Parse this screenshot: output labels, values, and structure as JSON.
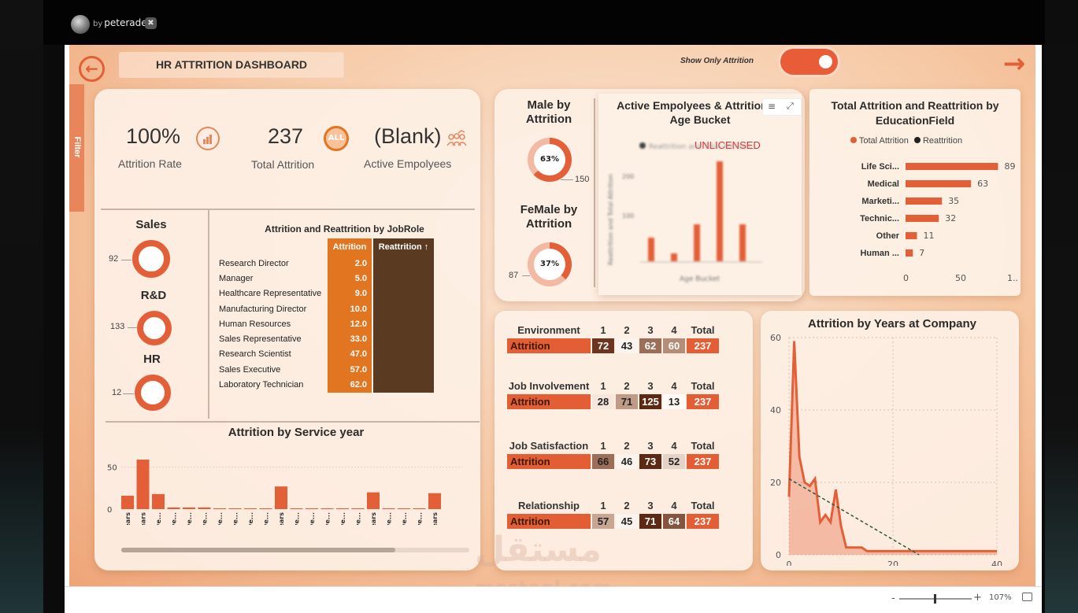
{
  "app": {
    "author_prefix": "by",
    "author": "peteradel",
    "watermark_ar": "مستقل",
    "watermark_en": "mostaql.com"
  },
  "header": {
    "title": "HR ATTRITION DASHBOARD",
    "toggle_label": "Show Only Attrition",
    "filter_tab": "Filter"
  },
  "kpis": [
    {
      "value": "100%",
      "label": "Attrition Rate"
    },
    {
      "value": "237",
      "label": "Total Attrition"
    },
    {
      "value": "(Blank)",
      "label": "Active Empolyees"
    }
  ],
  "dept": {
    "items": [
      {
        "name": "Sales",
        "value": "92"
      },
      {
        "name": "R&D",
        "value": "133"
      },
      {
        "name": "HR",
        "value": "12"
      }
    ]
  },
  "jobrole": {
    "title": "Attrition and Reattrition by JobRole",
    "col1": "Attrition",
    "col2": "Reattrition ↑",
    "rows": [
      {
        "role": "Research Director",
        "attr": "2.0"
      },
      {
        "role": "Manager",
        "attr": "5.0"
      },
      {
        "role": "Healthcare Representative",
        "attr": "9.0"
      },
      {
        "role": "Manufacturing Director",
        "attr": "10.0"
      },
      {
        "role": "Human Resources",
        "attr": "12.0"
      },
      {
        "role": "Sales Representative",
        "attr": "33.0"
      },
      {
        "role": "Research Scientist",
        "attr": "47.0"
      },
      {
        "role": "Sales Executive",
        "attr": "57.0"
      },
      {
        "role": "Laboratory Technician",
        "attr": "62.0"
      }
    ]
  },
  "gender": {
    "male_title": "Male by Attrition",
    "male_pct": "63%",
    "male_value": "150",
    "female_title": "FeMale by Attrition",
    "female_pct": "37%",
    "female_value": "87"
  },
  "age_chart": {
    "title": "Active Empolyees & Attrition by Age Bucket",
    "unlicensed": "UNLICENSED",
    "blurred_legend": "Reattrition and Total Attrition",
    "blurred_ylabel": "Reattrition and Total Attrition",
    "blurred_xlabel": "Age Bucket"
  },
  "matrices": [
    {
      "name": "Environment",
      "cols": [
        "1",
        "2",
        "3",
        "4"
      ],
      "total_label": "Total",
      "row": "Attrition",
      "vals": [
        "72",
        "43",
        "62",
        "60"
      ],
      "total": "237",
      "colors": [
        "#6b3520",
        "#fbf4ee",
        "#9a6e57",
        "#b38d78"
      ],
      "txt": [
        "#fff",
        "#222",
        "#fff",
        "#fff"
      ]
    },
    {
      "name": "Job Involvement",
      "cols": [
        "1",
        "2",
        "3",
        "4"
      ],
      "total_label": "Total",
      "row": "Attrition",
      "vals": [
        "28",
        "71",
        "125",
        "13"
      ],
      "total": "237",
      "colors": [
        "#f6e6dc",
        "#bf9a86",
        "#5c2a14",
        "#fffaf6"
      ],
      "txt": [
        "#222",
        "#222",
        "#fff",
        "#222"
      ]
    },
    {
      "name": "Job Satisfaction",
      "cols": [
        "1",
        "2",
        "3",
        "4"
      ],
      "total_label": "Total",
      "row": "Attrition",
      "vals": [
        "66",
        "46",
        "73",
        "52"
      ],
      "total": "237",
      "colors": [
        "#9a6e57",
        "#fbf4ee",
        "#5c2a14",
        "#e5d3c8"
      ],
      "txt": [
        "#222",
        "#222",
        "#fff",
        "#222"
      ]
    },
    {
      "name": "Relationship",
      "cols": [
        "1",
        "2",
        "3",
        "4"
      ],
      "total_label": "Total",
      "row": "Attrition",
      "vals": [
        "57",
        "45",
        "71",
        "64"
      ],
      "total": "237",
      "colors": [
        "#c7a793",
        "#fbf4ee",
        "#5c2a14",
        "#86553f"
      ],
      "txt": [
        "#222",
        "#222",
        "#fff",
        "#fff"
      ]
    }
  ],
  "zoom": {
    "value": "107%",
    "minus": "-",
    "plus": "+"
  },
  "chart_data": [
    {
      "type": "bar",
      "title": "Total Attrition and Reattrition by EducationField",
      "legend": [
        "Total Attrition",
        "Reattrition"
      ],
      "colors": [
        "#e35f37",
        "#222222"
      ],
      "categories": [
        "Life Sci...",
        "Medical",
        "Marketi...",
        "Technic...",
        "Other",
        "Human ..."
      ],
      "values": [
        89,
        63,
        35,
        32,
        11,
        7
      ],
      "xticks": [
        "0",
        "50",
        "1..."
      ],
      "xlim": [
        0,
        100
      ]
    },
    {
      "type": "bar",
      "title": "Attrition by Service year",
      "categories": [
        "0 years",
        "1 years",
        "10 ye...",
        "11 ye...",
        "13 ye...",
        "14 ye...",
        "15 ye...",
        "16 ye...",
        "17 ye...",
        "18 ye...",
        "2 years",
        "20 ye...",
        "21 ye...",
        "22 ye...",
        "23 ye...",
        "24 ye...",
        "3 years",
        "31 ye...",
        "32 ye...",
        "33 ye...",
        "4 years"
      ],
      "values": [
        16,
        59,
        18,
        2,
        2,
        2,
        1,
        1,
        1,
        1,
        27,
        1,
        1,
        1,
        1,
        1,
        20,
        1,
        1,
        1,
        19
      ],
      "yticks": [
        "0",
        "50"
      ],
      "ylim": [
        0,
        60
      ]
    },
    {
      "type": "line",
      "title": "Attrition by Years at Company",
      "x": [
        0,
        1,
        2,
        3,
        4,
        5,
        6,
        7,
        8,
        9,
        10,
        11,
        12,
        13,
        14,
        15,
        40
      ],
      "y": [
        16,
        59,
        27,
        20,
        19,
        21,
        9,
        11,
        9,
        18,
        8,
        2,
        2,
        2,
        2,
        1,
        1
      ],
      "trend": [
        [
          0,
          21
        ],
        [
          25,
          0
        ]
      ],
      "xticks": [
        "0",
        "20",
        "40"
      ],
      "yticks": [
        "0",
        "20",
        "40",
        "60"
      ],
      "xlim": [
        0,
        40
      ],
      "ylim": [
        0,
        60
      ]
    }
  ]
}
